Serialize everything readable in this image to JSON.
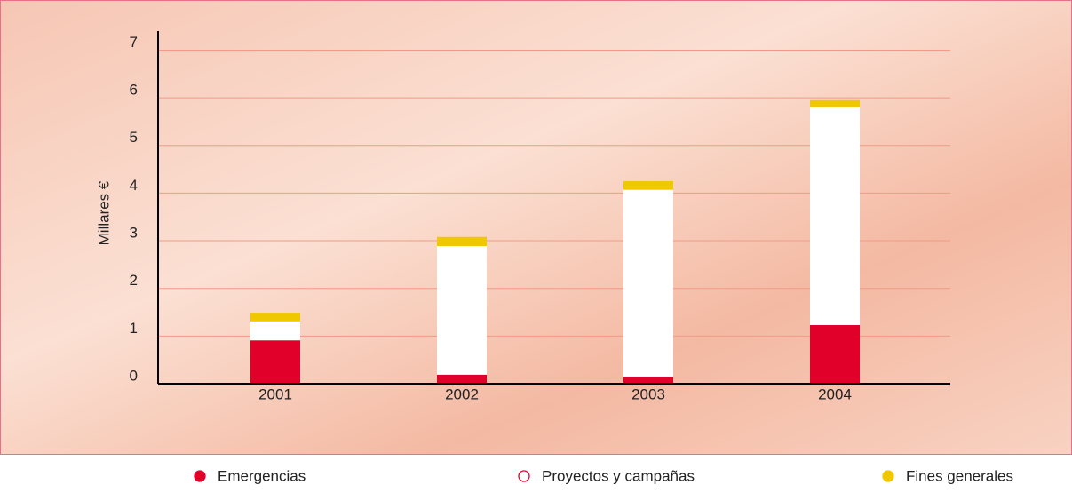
{
  "chart_data": {
    "type": "stacked_bar",
    "y_label": "Millares €",
    "categories": [
      "2001",
      "2002",
      "2003",
      "2004"
    ],
    "series": [
      {
        "name": "Emergencias",
        "color": "#e0002a",
        "values": [
          0.91,
          0.19,
          0.15,
          1.23
        ]
      },
      {
        "name": "Proyectos y campañas",
        "color": "#ffffff",
        "values": [
          0.4,
          2.7,
          3.92,
          4.57
        ]
      },
      {
        "name": "Fines generales",
        "color": "#f0c800",
        "values": [
          0.18,
          0.19,
          0.18,
          0.15
        ]
      }
    ],
    "ylim": [
      0,
      7.4
    ],
    "yticks": [
      0,
      1,
      2,
      3,
      4,
      5,
      6,
      7
    ],
    "grid": true,
    "legend": "bottom"
  }
}
